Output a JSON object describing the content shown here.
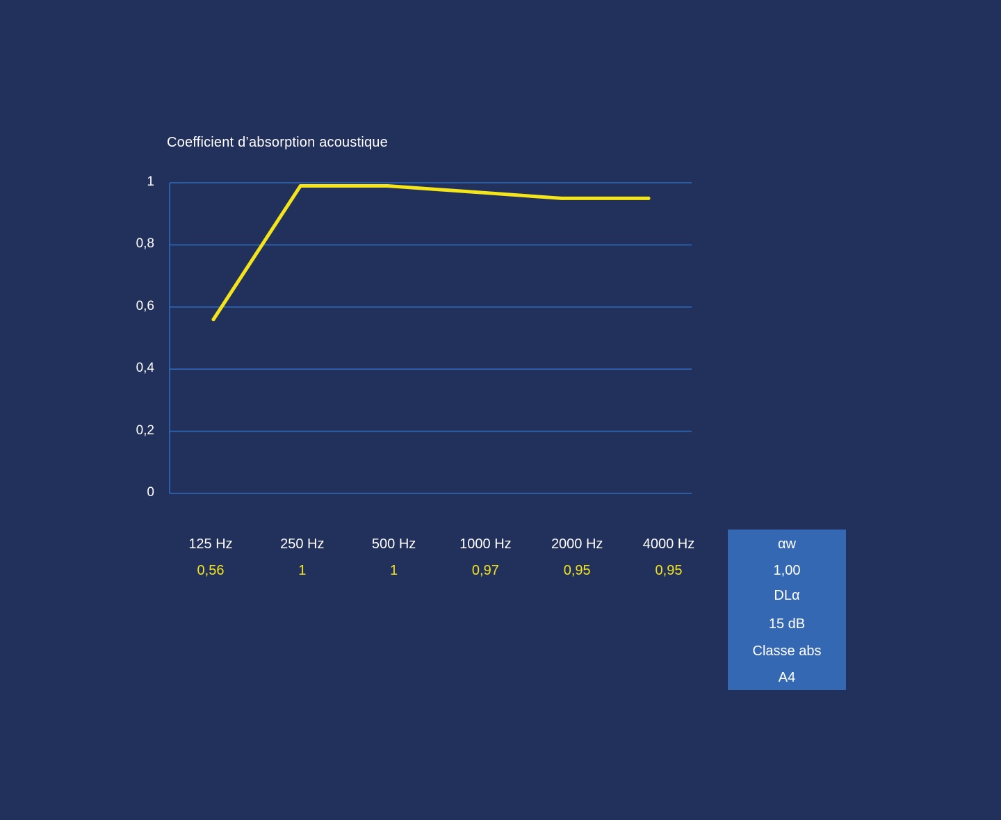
{
  "chart_data": {
    "type": "line",
    "title": "Coefficient d’absorption acoustique",
    "categories": [
      "125 Hz",
      "250 Hz",
      "500 Hz",
      "1000 Hz",
      "2000 Hz",
      "4000 Hz"
    ],
    "value_labels": [
      "0,56",
      "1",
      "1",
      "0,97",
      "0,95",
      "0,95"
    ],
    "series": [
      {
        "values": [
          0.56,
          0.99,
          0.99,
          0.97,
          0.95,
          0.95
        ],
        "color": "#f4e51a"
      }
    ],
    "ylim": [
      0,
      1
    ],
    "yticks": [
      0,
      0.2,
      0.4,
      0.6,
      0.8,
      1
    ],
    "ytick_labels": [
      "0",
      "0,2",
      "0,4",
      "0,6",
      "0,8",
      "1"
    ],
    "grid": true,
    "grid_color": "#2f6ab8"
  },
  "rating_box": {
    "lines": [
      "αw",
      "1,00",
      "DLα",
      "15 dB",
      "Classe abs",
      "A4"
    ]
  },
  "colors": {
    "background": "#22305c",
    "line": "#f4e51a",
    "grid": "#2f6ab8",
    "box": "#3568b2"
  }
}
